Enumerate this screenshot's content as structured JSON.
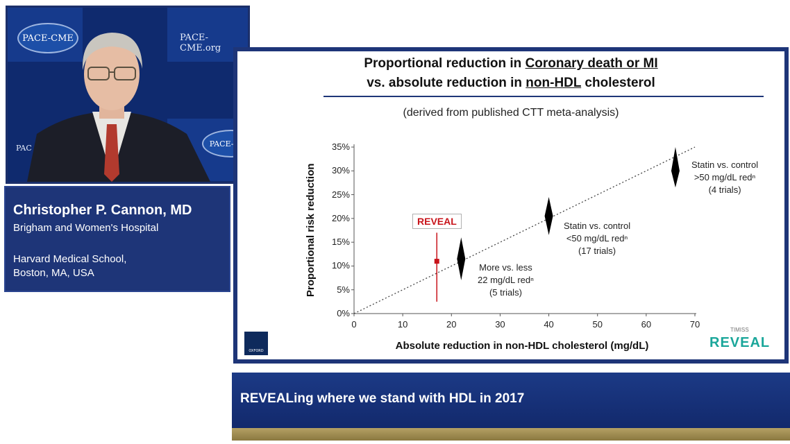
{
  "video": {
    "logo_text": "PACE-CME",
    "site_text": "PACE-CME.org",
    "partial_text": "PAC",
    "colors": {
      "background": "#0f2a6e",
      "tile": "#163a8c"
    }
  },
  "speaker": {
    "name": "Christopher P. Cannon, MD",
    "line1": "Brigham and Women's Hospital",
    "line2": "Harvard Medical School,",
    "line3": "Boston, MA, USA"
  },
  "slide": {
    "title_prefix1": "Proportional reduction in ",
    "title_underline1": "Coronary death or MI",
    "title_prefix2": "vs. absolute reduction in ",
    "title_underline2": "non-HDL",
    "title_suffix2": " cholesterol",
    "subtitle": "(derived from published CTT meta-analysis)",
    "logo_oxford": "OXFORD",
    "logo_reveal": "REVEAL",
    "logo_reveal_tag": "TIMISS"
  },
  "chart_data": {
    "type": "scatter",
    "xlabel": "Absolute reduction in non-HDL cholesterol (mg/dL)",
    "ylabel": "Proportional risk reduction",
    "xlim": [
      0,
      70
    ],
    "ylim": [
      0,
      35
    ],
    "x_ticks": [
      "0",
      "10",
      "20",
      "30",
      "40",
      "50",
      "60",
      "70"
    ],
    "y_ticks": [
      "0%",
      "5%",
      "10%",
      "15%",
      "20%",
      "25%",
      "30%",
      "35%"
    ],
    "trend_line": {
      "x": [
        0,
        70
      ],
      "y": [
        0,
        35
      ],
      "style": "dotted"
    },
    "points": [
      {
        "label": "REVEAL",
        "x": 17,
        "y": 11,
        "ci": [
          2.5,
          17
        ]
      },
      {
        "label": "More vs. less 22 mg/dL redⁿ (5 trials)",
        "x": 22,
        "y": 11.5,
        "ci": [
          7,
          16
        ]
      },
      {
        "label": "Statin vs. control <50 mg/dL redⁿ (17 trials)",
        "x": 40,
        "y": 20.5,
        "ci": [
          16.5,
          24.5
        ]
      },
      {
        "label": "Statin vs. control >50 mg/dL redⁿ (4 trials)",
        "x": 66,
        "y": 30,
        "ci": [
          26.5,
          35
        ]
      }
    ],
    "annotations": {
      "reveal": "REVEAL",
      "a1_l1": "More vs. less",
      "a1_l2": "22 mg/dL redⁿ",
      "a1_l3": "(5 trials)",
      "a2_l1": "Statin vs. control",
      "a2_l2": "<50 mg/dL redⁿ",
      "a2_l3": "(17 trials)",
      "a3_l1": "Statin vs. control",
      "a3_l2": ">50 mg/dL redⁿ",
      "a3_l3": "(4 trials)"
    },
    "colors": {
      "reveal": "#c8141b",
      "diamond": "#000000",
      "trend": "#444444"
    }
  },
  "lower_third": {
    "text": "REVEALing where we stand with HDL in 2017"
  }
}
